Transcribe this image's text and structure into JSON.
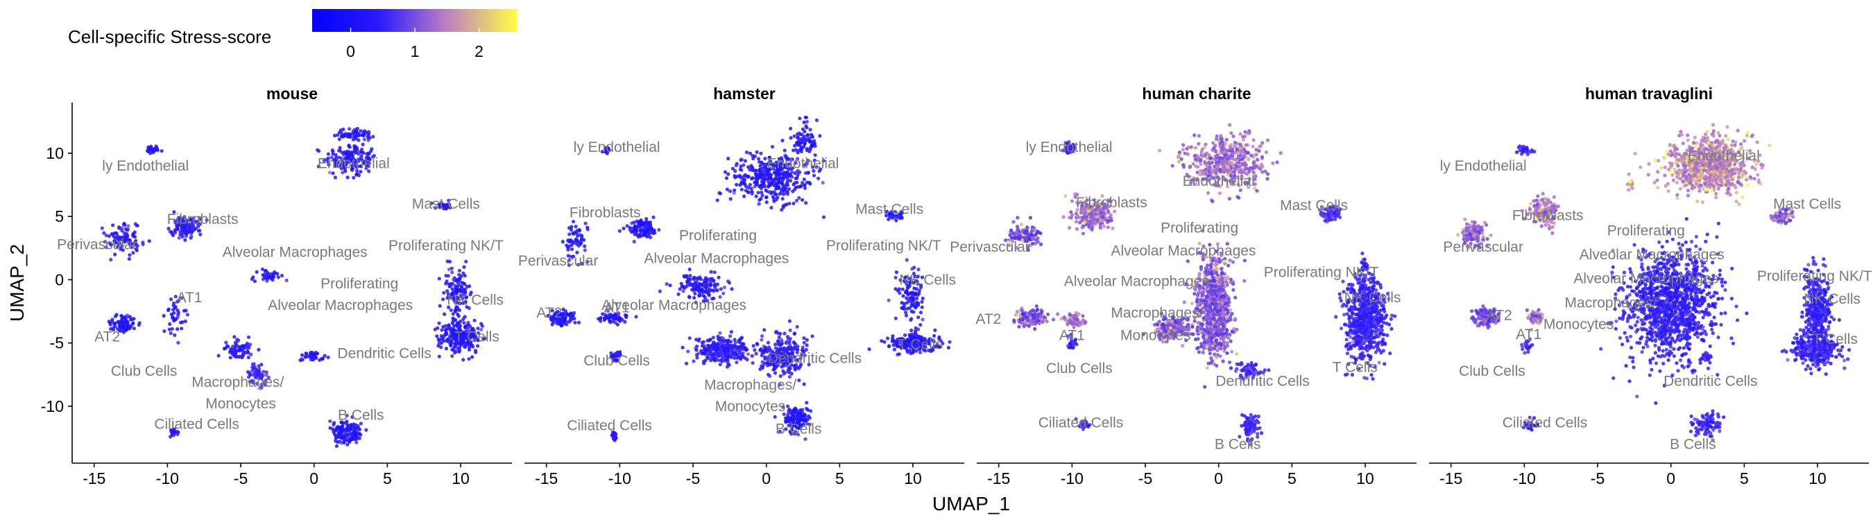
{
  "chart_data": {
    "type": "scatter",
    "xlabel": "UMAP_1",
    "ylabel": "UMAP_2",
    "xlim": [
      -16.5,
      13.5
    ],
    "ylim": [
      -14.5,
      14
    ],
    "xticks": [
      -15,
      -10,
      -5,
      0,
      5,
      10
    ],
    "yticks": [
      10,
      5,
      0,
      -5,
      -10
    ],
    "color_legend": {
      "title": "Cell-specific Stress-score",
      "ticks": [
        0,
        1,
        2
      ],
      "range": [
        -0.6,
        2.6
      ],
      "colors": [
        "#0000ff",
        "#2b1bff",
        "#c080c0",
        "#ffff40"
      ]
    },
    "panels": [
      {
        "name": "mouse",
        "labels": [
          {
            "text": "ly Endothelial",
            "x": -11.5,
            "y": 9.0
          },
          {
            "text": "Endothelial",
            "x": 2.7,
            "y": 9.2
          },
          {
            "text": "Mast Cells",
            "x": 9.0,
            "y": 6.0
          },
          {
            "text": "Fibroblasts",
            "x": -7.6,
            "y": 4.8
          },
          {
            "text": "Perivascular",
            "x": -14.8,
            "y": 2.8
          },
          {
            "text": "Alveolar Macrophages",
            "x": -1.3,
            "y": 2.2
          },
          {
            "text": "Proliferating NK/T",
            "x": 9.0,
            "y": 2.7
          },
          {
            "text": "Proliferating",
            "x": 3.1,
            "y": -0.3
          },
          {
            "text": "Alveolar Macrophages",
            "x": 1.8,
            "y": -2.0
          },
          {
            "text": "AT1",
            "x": -8.5,
            "y": -1.4
          },
          {
            "text": "NK Cells",
            "x": 11.0,
            "y": -1.6
          },
          {
            "text": "AT2",
            "x": -14.1,
            "y": -4.5
          },
          {
            "text": "T Cells",
            "x": 11.1,
            "y": -4.5
          },
          {
            "text": "Dendritic Cells",
            "x": 4.8,
            "y": -5.8
          },
          {
            "text": "Club Cells",
            "x": -11.6,
            "y": -7.2
          },
          {
            "text": "Macrophages/",
            "x": -5.2,
            "y": -8.1
          },
          {
            "text": "Monocytes",
            "x": -5.0,
            "y": -9.8
          },
          {
            "text": "B Cells",
            "x": 3.2,
            "y": -10.7
          },
          {
            "text": "Ciliated Cells",
            "x": -8.0,
            "y": -11.4
          }
        ]
      },
      {
        "name": "hamster",
        "labels": [
          {
            "text": "ly Endothelial",
            "x": -10.2,
            "y": 10.5
          },
          {
            "text": "Endothelial",
            "x": 2.5,
            "y": 9.2
          },
          {
            "text": "Mast Cells",
            "x": 8.4,
            "y": 5.6
          },
          {
            "text": "Fibroblasts",
            "x": -11.0,
            "y": 5.3
          },
          {
            "text": "Proliferating",
            "x": -3.3,
            "y": 3.5
          },
          {
            "text": "Proliferating NK/T",
            "x": 8.0,
            "y": 2.7
          },
          {
            "text": "Perivascular",
            "x": -14.2,
            "y": 1.5
          },
          {
            "text": "Alveolar Macrophages",
            "x": -3.4,
            "y": 1.7
          },
          {
            "text": "NK Cells",
            "x": 11.0,
            "y": 0.0
          },
          {
            "text": "Alveolar Macrophages",
            "x": -6.3,
            "y": -2.0
          },
          {
            "text": "AT2",
            "x": -14.8,
            "y": -2.6
          },
          {
            "text": "AT1",
            "x": -10.2,
            "y": -2.2
          },
          {
            "text": "T Cells",
            "x": 10.5,
            "y": -5.1
          },
          {
            "text": "Dendritic Cells",
            "x": 3.3,
            "y": -6.2
          },
          {
            "text": "Club Cells",
            "x": -10.2,
            "y": -6.4
          },
          {
            "text": "Macrophages/",
            "x": -1.1,
            "y": -8.3
          },
          {
            "text": "Monocytes",
            "x": -1.1,
            "y": -10.0
          },
          {
            "text": "Ciliated Cells",
            "x": -10.7,
            "y": -11.5
          },
          {
            "text": "B Cells",
            "x": 2.2,
            "y": -11.8
          }
        ]
      },
      {
        "name": "human charite",
        "labels": [
          {
            "text": "ly Endothelial",
            "x": -10.2,
            "y": 10.5
          },
          {
            "text": "Endothelial",
            "x": 0.0,
            "y": 7.8
          },
          {
            "text": "Mast Cells",
            "x": 6.5,
            "y": 5.9
          },
          {
            "text": "Fibroblasts",
            "x": -7.3,
            "y": 6.1
          },
          {
            "text": "Proliferating",
            "x": -1.3,
            "y": 4.1
          },
          {
            "text": "Perivascular",
            "x": -15.6,
            "y": 2.6
          },
          {
            "text": "Alveolar Macrophages",
            "x": -2.4,
            "y": 2.3
          },
          {
            "text": "Proliferating NK/T",
            "x": 7.0,
            "y": 0.6
          },
          {
            "text": "Alveolar Macrophages",
            "x": -5.6,
            "y": -0.1
          },
          {
            "text": "NK Cells",
            "x": 10.5,
            "y": -1.4
          },
          {
            "text": "Macrophages/",
            "x": -4.2,
            "y": -2.6
          },
          {
            "text": "AT2",
            "x": -15.7,
            "y": -3.1
          },
          {
            "text": "AT1",
            "x": -10.0,
            "y": -4.4
          },
          {
            "text": "Monocytes",
            "x": -4.3,
            "y": -4.4
          },
          {
            "text": "Club Cells",
            "x": -9.5,
            "y": -7.0
          },
          {
            "text": "T Cells",
            "x": 9.3,
            "y": -6.9
          },
          {
            "text": "Dendritic Cells",
            "x": 3.0,
            "y": -8.0
          },
          {
            "text": "Ciliated Cells",
            "x": -9.4,
            "y": -11.3
          },
          {
            "text": "B Cells",
            "x": 1.3,
            "y": -13.0
          }
        ]
      },
      {
        "name": "human travaglini",
        "labels": [
          {
            "text": "ly Endothelial",
            "x": -12.8,
            "y": 9.0
          },
          {
            "text": "Endothelial",
            "x": 3.6,
            "y": 9.8
          },
          {
            "text": "Mast Cells",
            "x": 9.3,
            "y": 6.0
          },
          {
            "text": "Fibroblasts",
            "x": -8.4,
            "y": 5.1
          },
          {
            "text": "Proliferating",
            "x": -1.7,
            "y": 3.9
          },
          {
            "text": "Perivascular",
            "x": -12.8,
            "y": 2.6
          },
          {
            "text": "Alveolar Macrophages",
            "x": -1.3,
            "y": 2.0
          },
          {
            "text": "Proliferating NK/T",
            "x": 9.8,
            "y": 0.3
          },
          {
            "text": "Alveolar Macrophages",
            "x": -1.7,
            "y": 0.1
          },
          {
            "text": "NK Cells",
            "x": 11.0,
            "y": -1.5
          },
          {
            "text": "Macrophages/",
            "x": -4.1,
            "y": -1.8
          },
          {
            "text": "AT2",
            "x": -11.7,
            "y": -2.8
          },
          {
            "text": "Monocytes",
            "x": -6.3,
            "y": -3.5
          },
          {
            "text": "AT1",
            "x": -9.7,
            "y": -4.3
          },
          {
            "text": "T Cells",
            "x": 11.2,
            "y": -4.7
          },
          {
            "text": "Club Cells",
            "x": -12.2,
            "y": -7.2
          },
          {
            "text": "Dendritic Cells",
            "x": 2.7,
            "y": -8.0
          },
          {
            "text": "Ciliated Cells",
            "x": -8.6,
            "y": -11.3
          },
          {
            "text": "B Cells",
            "x": 1.5,
            "y": -13.0
          }
        ]
      }
    ]
  }
}
